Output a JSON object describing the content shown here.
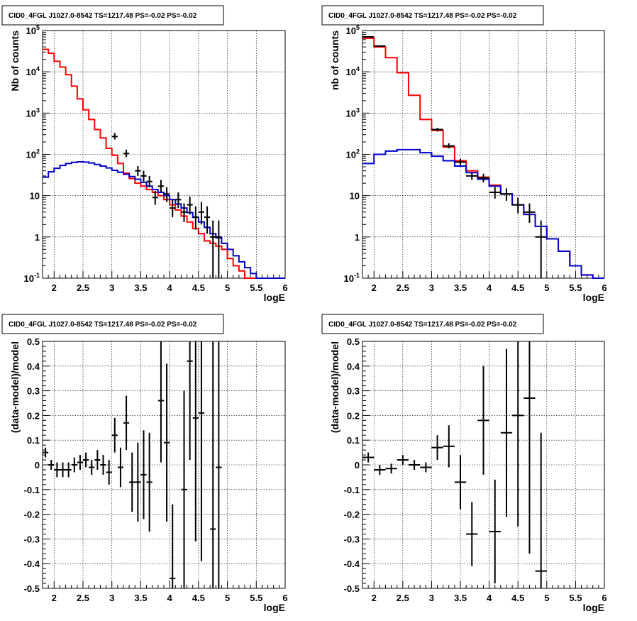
{
  "chart_data": [
    {
      "type": "histogram",
      "title": "CID0_4FGL J1027.0-8542 TS=1217.48 PS=-0.02 PS=-0.02",
      "xlabel": "logE",
      "ylabel": "Nb of counts",
      "xlim": [
        1.8,
        6
      ],
      "ylim": [
        0.1,
        100000
      ],
      "yscale": "log",
      "grid": true,
      "x_ticks": [
        "2",
        "2.5",
        "3",
        "3.5",
        "4",
        "4.5",
        "5",
        "5.5",
        "6"
      ],
      "y_ticks": [
        "10^-1",
        "1",
        "10",
        "10^2",
        "10^3",
        "10^4",
        "10^5"
      ],
      "colors": {
        "model_total": "#ff0000",
        "model_component": "#0000cc",
        "data": "#000000"
      },
      "series": [
        {
          "style": "step",
          "color": "#ff0000",
          "bin_edges": [
            1.8,
            1.9,
            2.0,
            2.1,
            2.2,
            2.3,
            2.4,
            2.5,
            2.6,
            2.7,
            2.8,
            2.9,
            3.0,
            3.1,
            3.2,
            3.3,
            3.4,
            3.5,
            3.6,
            3.7,
            3.8,
            3.9,
            4.0,
            4.1,
            4.2,
            4.3,
            4.4,
            4.5,
            4.6,
            4.7,
            4.8,
            4.9,
            5.0,
            5.1,
            5.2,
            5.3,
            5.4,
            5.5,
            5.6,
            5.7,
            5.8,
            5.9,
            6.0
          ],
          "values": [
            35000,
            28000,
            18000,
            13000,
            8500,
            4500,
            2200,
            1200,
            700,
            400,
            250,
            140,
            95,
            60,
            35,
            26,
            20,
            17,
            14,
            12,
            10,
            8,
            6,
            4.5,
            3.2,
            2.3,
            1.6,
            1.2,
            0.8,
            0.7,
            0.6,
            0.5,
            0.3,
            0.2,
            0.15,
            0.1,
            0.1,
            0.1,
            0.1,
            0.1,
            0.1,
            0.1
          ]
        },
        {
          "style": "step",
          "color": "#0000cc",
          "bin_edges": [
            1.8,
            1.9,
            2.0,
            2.1,
            2.2,
            2.3,
            2.4,
            2.5,
            2.6,
            2.7,
            2.8,
            2.9,
            3.0,
            3.1,
            3.2,
            3.3,
            3.4,
            3.5,
            3.6,
            3.7,
            3.8,
            3.9,
            4.0,
            4.1,
            4.2,
            4.3,
            4.4,
            4.5,
            4.6,
            4.7,
            4.8,
            4.9,
            5.0,
            5.1,
            5.2,
            5.3,
            5.4,
            5.5,
            5.6,
            5.7,
            5.8,
            5.9,
            6.0
          ],
          "values": [
            28,
            38,
            46,
            54,
            60,
            64,
            66,
            65,
            62,
            57,
            52,
            47,
            41,
            37,
            33,
            29,
            25,
            21,
            17,
            14,
            12,
            10,
            8,
            6.3,
            5,
            3.9,
            3,
            2.3,
            1.7,
            1.2,
            0.95,
            0.7,
            0.5,
            0.35,
            0.25,
            0.18,
            0.13,
            0.1,
            0.1,
            0.1,
            0.1,
            0.1
          ]
        },
        {
          "style": "errorbar",
          "color": "#000000",
          "points": [
            {
              "x": 3.05,
              "y": 270,
              "xerr": 0.05,
              "ylo": 230,
              "yhi": 330
            },
            {
              "x": 3.25,
              "y": 105,
              "xerr": 0.05,
              "ylo": 85,
              "yhi": 130
            },
            {
              "x": 3.45,
              "y": 40,
              "xerr": 0.05,
              "ylo": 30,
              "yhi": 52
            },
            {
              "x": 3.55,
              "y": 30,
              "xerr": 0.05,
              "ylo": 22,
              "yhi": 40
            },
            {
              "x": 3.65,
              "y": 22,
              "xerr": 0.05,
              "ylo": 16,
              "yhi": 30
            },
            {
              "x": 3.75,
              "y": 9,
              "xerr": 0.05,
              "ylo": 6,
              "yhi": 13
            },
            {
              "x": 3.85,
              "y": 17,
              "xerr": 0.05,
              "ylo": 12,
              "yhi": 24
            },
            {
              "x": 3.95,
              "y": 11,
              "xerr": 0.05,
              "ylo": 7,
              "yhi": 16
            },
            {
              "x": 4.05,
              "y": 5,
              "xerr": 0.05,
              "ylo": 3,
              "yhi": 8
            },
            {
              "x": 4.15,
              "y": 8,
              "xerr": 0.05,
              "ylo": 5,
              "yhi": 12
            },
            {
              "x": 4.25,
              "y": 4,
              "xerr": 0.05,
              "ylo": 2.3,
              "yhi": 6.5
            },
            {
              "x": 4.35,
              "y": 6,
              "xerr": 0.05,
              "ylo": 3.5,
              "yhi": 9.5
            },
            {
              "x": 4.45,
              "y": 3,
              "xerr": 0.05,
              "ylo": 1.5,
              "yhi": 5.5
            },
            {
              "x": 4.55,
              "y": 4,
              "xerr": 0.05,
              "ylo": 2,
              "yhi": 7
            },
            {
              "x": 4.65,
              "y": 3,
              "xerr": 0.05,
              "ylo": 1.2,
              "yhi": 5.5
            },
            {
              "x": 4.75,
              "y": 1,
              "xerr": 0.05,
              "ylo": 0.1,
              "yhi": 2.5
            },
            {
              "x": 4.85,
              "y": 1,
              "xerr": 0.05,
              "ylo": 0.1,
              "yhi": 2.5
            }
          ]
        }
      ]
    },
    {
      "type": "histogram",
      "title": "CID0_4FGL J1027.0-8542 TS=1217.48 PS=-0.02 PS=-0.02",
      "xlabel": "logE",
      "ylabel": "nb of counts",
      "xlim": [
        1.8,
        6
      ],
      "ylim": [
        0.1,
        100000
      ],
      "yscale": "log",
      "grid": true,
      "x_ticks": [
        "2",
        "2.5",
        "3",
        "3.5",
        "4",
        "4.5",
        "5",
        "5.5",
        "6"
      ],
      "y_ticks": [
        "10^-1",
        "1",
        "10",
        "10^2",
        "10^3",
        "10^4",
        "10^5"
      ],
      "series": [
        {
          "style": "step",
          "color": "#ff0000",
          "bin_edges": [
            1.8,
            2.0,
            2.2,
            2.4,
            2.6,
            2.8,
            3.0,
            3.2,
            3.4,
            3.6,
            3.8,
            4.0,
            4.2,
            4.4,
            4.6,
            4.8,
            5.0,
            5.2,
            5.4,
            5.6,
            5.8,
            6.0
          ],
          "values": [
            65000,
            40000,
            22000,
            9500,
            2700,
            700,
            380,
            150,
            70,
            40,
            28,
            18,
            11,
            6,
            3.5,
            1.8,
            0.9,
            0.45,
            0.2,
            0.12,
            0.1
          ]
        },
        {
          "style": "step",
          "color": "#0000cc",
          "bin_edges": [
            1.8,
            2.0,
            2.2,
            2.4,
            2.6,
            2.8,
            3.0,
            3.2,
            3.4,
            3.6,
            3.8,
            4.0,
            4.2,
            4.4,
            4.6,
            4.8,
            5.0,
            5.2,
            5.4,
            5.6,
            5.8,
            6.0
          ],
          "values": [
            60,
            100,
            120,
            130,
            130,
            110,
            90,
            70,
            52,
            36,
            25,
            17,
            11,
            6,
            3.5,
            1.8,
            0.9,
            0.45,
            0.2,
            0.12,
            0.1
          ]
        },
        {
          "style": "errorbar",
          "color": "#000000",
          "points": [
            {
              "x": 1.9,
              "y": 70000,
              "xerr": 0.1,
              "ylo": 68000,
              "yhi": 72000
            },
            {
              "x": 2.1,
              "y": 42000,
              "xerr": 0.1,
              "ylo": 41000,
              "yhi": 43000
            },
            {
              "x": 3.1,
              "y": 400,
              "xerr": 0.1,
              "ylo": 360,
              "yhi": 440
            },
            {
              "x": 3.3,
              "y": 160,
              "xerr": 0.1,
              "ylo": 140,
              "yhi": 185
            },
            {
              "x": 3.5,
              "y": 65,
              "xerr": 0.1,
              "ylo": 55,
              "yhi": 78
            },
            {
              "x": 3.7,
              "y": 30,
              "xerr": 0.1,
              "ylo": 24,
              "yhi": 38
            },
            {
              "x": 3.9,
              "y": 27,
              "xerr": 0.1,
              "ylo": 21,
              "yhi": 34
            },
            {
              "x": 4.1,
              "y": 12,
              "xerr": 0.1,
              "ylo": 8.5,
              "yhi": 16
            },
            {
              "x": 4.3,
              "y": 11,
              "xerr": 0.1,
              "ylo": 7.5,
              "yhi": 15
            },
            {
              "x": 4.5,
              "y": 6,
              "xerr": 0.1,
              "ylo": 3.7,
              "yhi": 9
            },
            {
              "x": 4.7,
              "y": 4,
              "xerr": 0.1,
              "ylo": 2.2,
              "yhi": 6.5
            },
            {
              "x": 4.9,
              "y": 1,
              "xerr": 0.1,
              "ylo": 0.1,
              "yhi": 2.5
            }
          ]
        }
      ]
    },
    {
      "type": "scatter",
      "title": "CID0_4FGL J1027.0-8542 TS=1217.48 PS=-0.02 PS=-0.02",
      "xlabel": "logE",
      "ylabel": "(data-model)/model",
      "xlim": [
        1.8,
        6
      ],
      "ylim": [
        -0.5,
        0.5
      ],
      "grid": true,
      "x_ticks": [
        "2",
        "2.5",
        "3",
        "3.5",
        "4",
        "4.5",
        "5",
        "5.5",
        "6"
      ],
      "y_ticks": [
        "-0.5",
        "-0.4",
        "-0.3",
        "-0.2",
        "-0.1",
        "0",
        "0.1",
        "0.2",
        "0.3",
        "0.4",
        "0.5"
      ],
      "series": [
        {
          "style": "errorbar",
          "color": "#000000",
          "points": [
            {
              "x": 1.85,
              "y": 0.05,
              "xerr": 0.05,
              "err": 0.02
            },
            {
              "x": 1.95,
              "y": 0.0,
              "xerr": 0.05,
              "err": 0.02
            },
            {
              "x": 2.05,
              "y": -0.02,
              "xerr": 0.05,
              "err": 0.03
            },
            {
              "x": 2.15,
              "y": -0.02,
              "xerr": 0.05,
              "err": 0.03
            },
            {
              "x": 2.25,
              "y": -0.02,
              "xerr": 0.05,
              "err": 0.03
            },
            {
              "x": 2.35,
              "y": 0.0,
              "xerr": 0.05,
              "err": 0.03
            },
            {
              "x": 2.45,
              "y": 0.01,
              "xerr": 0.05,
              "err": 0.03
            },
            {
              "x": 2.55,
              "y": 0.02,
              "xerr": 0.05,
              "err": 0.03
            },
            {
              "x": 2.65,
              "y": -0.01,
              "xerr": 0.05,
              "err": 0.03
            },
            {
              "x": 2.75,
              "y": 0.02,
              "xerr": 0.05,
              "err": 0.04
            },
            {
              "x": 2.85,
              "y": 0.0,
              "xerr": 0.05,
              "err": 0.04
            },
            {
              "x": 2.95,
              "y": -0.03,
              "xerr": 0.05,
              "err": 0.05
            },
            {
              "x": 3.05,
              "y": 0.12,
              "xerr": 0.05,
              "err": 0.07
            },
            {
              "x": 3.15,
              "y": -0.01,
              "xerr": 0.05,
              "err": 0.08
            },
            {
              "x": 3.25,
              "y": 0.17,
              "xerr": 0.05,
              "err": 0.11
            },
            {
              "x": 3.35,
              "y": -0.07,
              "xerr": 0.05,
              "err": 0.12
            },
            {
              "x": 3.45,
              "y": -0.07,
              "xerr": 0.05,
              "err": 0.16
            },
            {
              "x": 3.55,
              "y": -0.04,
              "xerr": 0.05,
              "err": 0.18
            },
            {
              "x": 3.65,
              "y": -0.07,
              "xerr": 0.05,
              "err": 0.2
            },
            {
              "x": 3.85,
              "y": 0.26,
              "xerr": 0.05,
              "err": 0.25
            },
            {
              "x": 3.95,
              "y": 0.09,
              "xerr": 0.05,
              "err": 0.32
            },
            {
              "x": 4.05,
              "y": -0.46,
              "xerr": 0.05,
              "err": 0.3
            },
            {
              "x": 4.25,
              "y": -0.1,
              "xerr": 0.05,
              "err": 0.4
            },
            {
              "x": 4.35,
              "y": 0.42,
              "xerr": 0.05,
              "err": 0.4
            },
            {
              "x": 4.45,
              "y": 0.19,
              "xerr": 0.05,
              "err": 0.5
            },
            {
              "x": 4.55,
              "y": 0.21,
              "xerr": 0.05,
              "err": 0.6
            },
            {
              "x": 4.75,
              "y": -0.26,
              "xerr": 0.05,
              "err": 0.8
            },
            {
              "x": 4.85,
              "y": -0.01,
              "xerr": 0.05,
              "err": 0.8
            }
          ]
        }
      ]
    },
    {
      "type": "scatter",
      "title": "CID0_4FGL J1027.0-8542 TS=1217.48 PS=-0.02 PS=-0.02",
      "xlabel": "logE",
      "ylabel": "(data-model)/model",
      "xlim": [
        1.8,
        6
      ],
      "ylim": [
        -0.5,
        0.5
      ],
      "grid": true,
      "x_ticks": [
        "2",
        "2.5",
        "3",
        "3.5",
        "4",
        "4.5",
        "5",
        "5.5",
        "6"
      ],
      "y_ticks": [
        "-0.5",
        "-0.4",
        "-0.3",
        "-0.2",
        "-0.1",
        "0",
        "0.1",
        "0.2",
        "0.3",
        "0.4",
        "0.5"
      ],
      "series": [
        {
          "style": "errorbar",
          "color": "#000000",
          "points": [
            {
              "x": 1.9,
              "y": 0.03,
              "xerr": 0.1,
              "err": 0.02
            },
            {
              "x": 2.1,
              "y": -0.02,
              "xerr": 0.1,
              "err": 0.02
            },
            {
              "x": 2.3,
              "y": -0.015,
              "xerr": 0.1,
              "err": 0.02
            },
            {
              "x": 2.5,
              "y": 0.02,
              "xerr": 0.1,
              "err": 0.02
            },
            {
              "x": 2.7,
              "y": 0.0,
              "xerr": 0.1,
              "err": 0.02
            },
            {
              "x": 2.9,
              "y": -0.01,
              "xerr": 0.1,
              "err": 0.02
            },
            {
              "x": 3.1,
              "y": 0.07,
              "xerr": 0.1,
              "err": 0.05
            },
            {
              "x": 3.3,
              "y": 0.075,
              "xerr": 0.1,
              "err": 0.085
            },
            {
              "x": 3.5,
              "y": -0.07,
              "xerr": 0.1,
              "err": 0.11
            },
            {
              "x": 3.7,
              "y": -0.28,
              "xerr": 0.1,
              "err": 0.13
            },
            {
              "x": 3.9,
              "y": 0.18,
              "xerr": 0.1,
              "err": 0.22
            },
            {
              "x": 4.1,
              "y": -0.27,
              "xerr": 0.1,
              "err": 0.21
            },
            {
              "x": 4.3,
              "y": 0.13,
              "xerr": 0.1,
              "err": 0.34
            },
            {
              "x": 4.5,
              "y": 0.2,
              "xerr": 0.1,
              "err": 0.45
            },
            {
              "x": 4.7,
              "y": 0.27,
              "xerr": 0.1,
              "err": 0.63
            },
            {
              "x": 4.9,
              "y": -0.43,
              "xerr": 0.1,
              "err": 0.56
            }
          ]
        }
      ]
    }
  ]
}
